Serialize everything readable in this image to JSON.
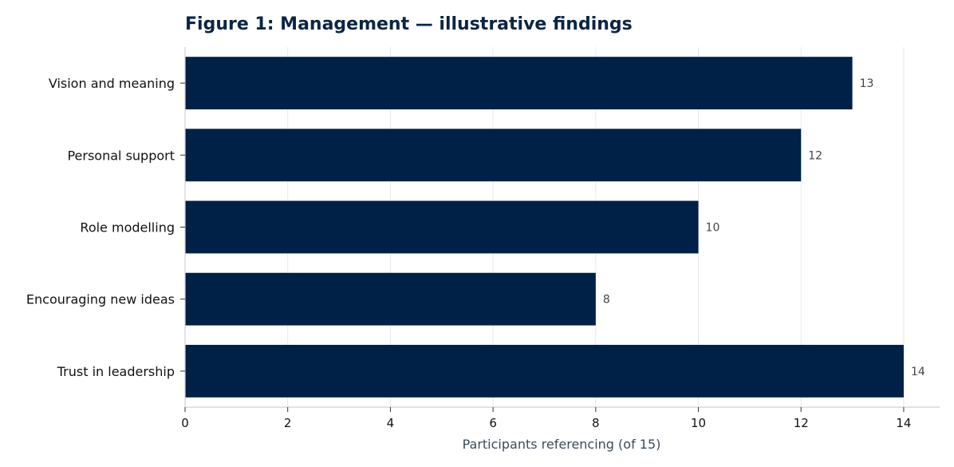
{
  "chart_data": {
    "type": "bar",
    "orientation": "horizontal",
    "title": "Figure 1: Management — illustrative findings",
    "xlabel": "Participants referencing (of 15)",
    "ylabel": "",
    "categories": [
      "Vision and meaning",
      "Personal support",
      "Role modelling",
      "Encouraging new ideas",
      "Trust in leadership"
    ],
    "values": [
      13,
      12,
      10,
      8,
      14
    ],
    "value_labels": [
      "13",
      "12",
      "10",
      "8",
      "14"
    ],
    "xlim": [
      0,
      14.7
    ],
    "xticks": [
      0,
      2,
      4,
      6,
      8,
      10,
      12,
      14
    ],
    "xtick_labels": [
      "0",
      "2",
      "4",
      "6",
      "8",
      "10",
      "12",
      "14"
    ],
    "bar_color": "#002147",
    "grid": true,
    "legend": "none"
  }
}
